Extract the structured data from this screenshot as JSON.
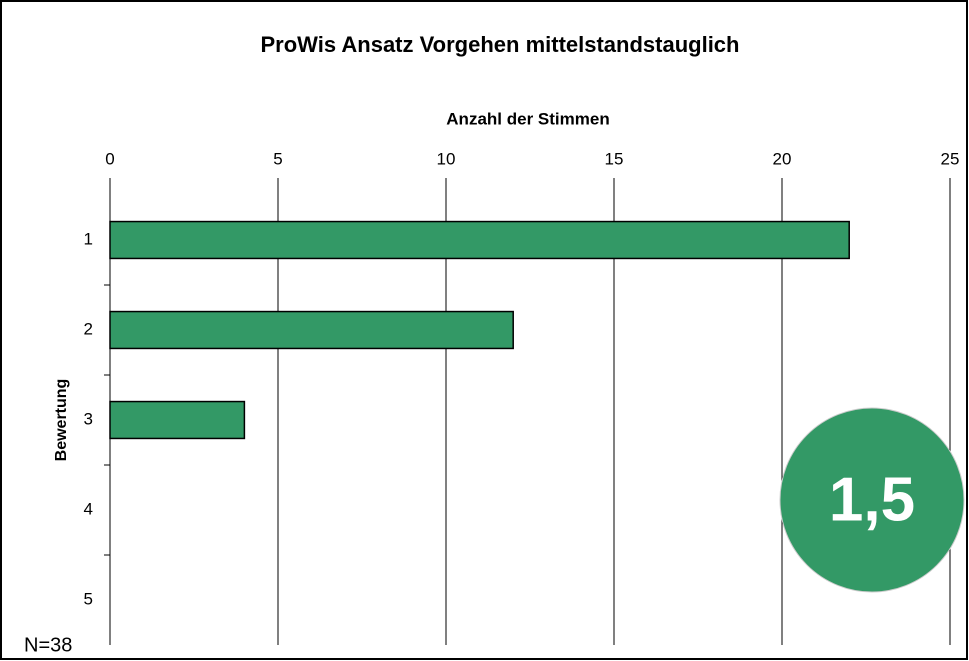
{
  "chart_data": {
    "type": "barh",
    "title": "ProWis Ansatz Vorgehen mittelstandstauglich",
    "x_label": "Anzahl der Stimmen",
    "y_label": "Bewertung",
    "categories": [
      "1",
      "2",
      "3",
      "4",
      "5"
    ],
    "values": [
      22,
      12,
      4,
      0,
      0
    ],
    "color": "#339966",
    "xlim": [
      0,
      25
    ],
    "xticks": [
      0,
      5,
      10,
      15,
      20,
      25
    ],
    "grid": true,
    "annotations": [
      "1,5",
      "N=38"
    ]
  }
}
